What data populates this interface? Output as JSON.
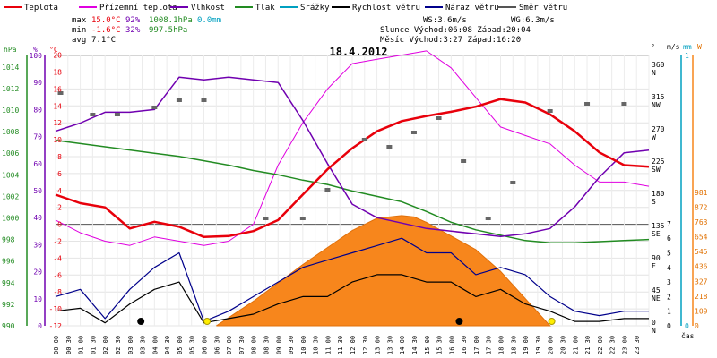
{
  "chart_data": {
    "type": "line",
    "title": "18.4.2012",
    "legend": [
      {
        "label": "Teplota",
        "color": "#e8000b"
      },
      {
        "label": "Přízemní teplota",
        "color": "#e000e0"
      },
      {
        "label": "Vlhkost",
        "color": "#7000b0"
      },
      {
        "label": "Tlak",
        "color": "#228b22"
      },
      {
        "label": "Srážky",
        "color": "#00a0c0"
      },
      {
        "label": "Rychlost větru",
        "color": "#000000"
      },
      {
        "label": "Náraz větru",
        "color": "#00008b"
      },
      {
        "label": "Směr větru",
        "color": "#555555"
      }
    ],
    "stats": {
      "max_label": "max",
      "max_temp": "15.0°C",
      "max_hum": "92%",
      "max_press": "1008.1hPa",
      "precip": "0.0mm",
      "min_label": "min",
      "min_temp": "-1.6°C",
      "min_hum": "32%",
      "min_press": "997.5hPa",
      "avg_label": "avg",
      "avg_temp": "7.1°C",
      "ws": "WS:3.6m/s",
      "wg": "WG:6.3m/s",
      "sun": "Slunce Východ:06:08   Západ:20:04",
      "moon": "Měsíc  Východ:3:27    Západ:16:20"
    },
    "axes": {
      "hpa_label": "hPa",
      "pct_label": "%",
      "c_label": "°C",
      "hpa_ticks": [
        "1014",
        "1012",
        "1010",
        "1008",
        "1006",
        "1004",
        "1002",
        "1000",
        "998",
        "996",
        "994",
        "992",
        "990"
      ],
      "pct_ticks": [
        "100",
        "90",
        "80",
        "70",
        "60",
        "50",
        "40",
        "30",
        "20",
        "10",
        "0"
      ],
      "c_ticks": [
        "20",
        "18",
        "16",
        "14",
        "12",
        "10",
        "8",
        "6",
        "4",
        "2",
        "0",
        "-2",
        "-4",
        "-6",
        "-8",
        "-10",
        "-12"
      ],
      "deg_label": "°",
      "dir_ticks": [
        "360",
        "315",
        "270",
        "225",
        "180",
        "135",
        "90",
        "45",
        "0"
      ],
      "dir_names": [
        "N",
        "NW",
        "W",
        "SW",
        "S",
        "SE",
        "E",
        "NE",
        "N"
      ],
      "ms_label": "m/s",
      "ms_ticks": [
        "7",
        "6",
        "5",
        "4",
        "3",
        "2",
        "1",
        "0"
      ],
      "mm_label": "mm",
      "mm_ticks": [
        "1",
        "0"
      ],
      "w_label": "W",
      "w_ticks": [
        "981",
        "872",
        "763",
        "654",
        "545",
        "436",
        "327",
        "218",
        "109",
        "0"
      ],
      "x_label": "čas",
      "x_ticks": [
        "00:00",
        "00:30",
        "01:00",
        "01:30",
        "02:00",
        "02:30",
        "03:00",
        "03:30",
        "04:00",
        "04:30",
        "05:00",
        "05:30",
        "06:00",
        "06:30",
        "07:00",
        "07:30",
        "08:00",
        "08:30",
        "09:00",
        "09:30",
        "10:00",
        "10:30",
        "11:00",
        "11:30",
        "12:00",
        "12:30",
        "13:00",
        "13:30",
        "14:00",
        "14:30",
        "15:00",
        "15:30",
        "16:00",
        "16:30",
        "17:00",
        "17:30",
        "18:00",
        "18:30",
        "19:00",
        "19:30",
        "20:00",
        "20:30",
        "21:00",
        "21:30",
        "22:00",
        "22:30",
        "23:00",
        "23:30"
      ]
    },
    "series": [
      {
        "name": "Teplota",
        "unit": "°C",
        "hours": [
          0,
          1,
          2,
          3,
          4,
          5,
          6,
          7,
          8,
          9,
          10,
          11,
          12,
          13,
          14,
          15,
          16,
          17,
          18,
          19,
          20,
          21,
          22,
          23,
          24
        ],
        "values": [
          3.5,
          2.5,
          2.0,
          -0.5,
          0.3,
          -0.3,
          -1.5,
          -1.4,
          -0.8,
          0.5,
          3.5,
          6.5,
          9.0,
          11.0,
          12.2,
          12.8,
          13.3,
          13.9,
          14.8,
          14.4,
          13.0,
          11.0,
          8.5,
          7.0,
          6.8
        ]
      },
      {
        "name": "Přízemní teplota",
        "unit": "°C",
        "hours": [
          0,
          1,
          2,
          3,
          4,
          5,
          6,
          7,
          8,
          9,
          10,
          11,
          12,
          13,
          14,
          15,
          16,
          17,
          18,
          19,
          20,
          21,
          22,
          23,
          24
        ],
        "values": [
          0.5,
          -1.0,
          -2.0,
          -2.5,
          -1.5,
          -2.0,
          -2.5,
          -2.0,
          0.0,
          7.0,
          12.0,
          16.0,
          19.0,
          19.5,
          20.0,
          20.5,
          18.5,
          15.0,
          11.5,
          10.5,
          9.5,
          7.0,
          5.0,
          5.0,
          4.5
        ]
      },
      {
        "name": "Vlhkost",
        "unit": "%",
        "hours": [
          0,
          1,
          2,
          3,
          4,
          5,
          6,
          7,
          8,
          9,
          10,
          11,
          12,
          13,
          14,
          15,
          16,
          17,
          18,
          19,
          20,
          21,
          22,
          23,
          24
        ],
        "values": [
          72,
          75,
          79,
          79,
          80,
          92,
          91,
          92,
          91,
          90,
          76,
          60,
          45,
          40,
          38,
          36,
          35,
          34,
          33,
          34,
          36,
          44,
          55,
          64,
          65
        ]
      },
      {
        "name": "Tlak",
        "unit": "hPa",
        "hours": [
          0,
          1,
          2,
          3,
          4,
          5,
          6,
          7,
          8,
          9,
          10,
          11,
          12,
          13,
          14,
          15,
          16,
          17,
          18,
          19,
          20,
          21,
          22,
          23,
          24
        ],
        "values": [
          1007.2,
          1006.9,
          1006.6,
          1006.3,
          1006.0,
          1005.7,
          1005.3,
          1004.9,
          1004.4,
          1004.0,
          1003.5,
          1003.1,
          1002.5,
          1002.0,
          1001.5,
          1000.6,
          999.6,
          998.9,
          998.4,
          997.9,
          997.7,
          997.7,
          997.8,
          997.9,
          998.0
        ]
      },
      {
        "name": "Rychlost větru",
        "unit": "m/s",
        "hours": [
          0,
          1,
          2,
          3,
          4,
          5,
          6,
          7,
          8,
          9,
          10,
          11,
          12,
          13,
          14,
          15,
          16,
          17,
          18,
          19,
          20,
          21,
          22,
          23,
          24
        ],
        "values": [
          1.0,
          1.2,
          0.2,
          1.5,
          2.5,
          3.0,
          0.2,
          0.5,
          0.8,
          1.5,
          2.0,
          2.0,
          3.0,
          3.5,
          3.5,
          3.0,
          3.0,
          2.0,
          2.5,
          1.5,
          1.0,
          0.3,
          0.3,
          0.5,
          0.5
        ]
      },
      {
        "name": "Náraz větru",
        "unit": "m/s",
        "hours": [
          0,
          1,
          2,
          3,
          4,
          5,
          6,
          7,
          8,
          9,
          10,
          11,
          12,
          13,
          14,
          15,
          16,
          17,
          18,
          19,
          20,
          21,
          22,
          23,
          24
        ],
        "values": [
          2.0,
          2.5,
          0.5,
          2.5,
          4.0,
          5.0,
          0.3,
          1.0,
          2.0,
          3.0,
          4.0,
          4.5,
          5.0,
          5.5,
          6.0,
          5.0,
          5.0,
          3.5,
          4.0,
          3.5,
          2.0,
          1.0,
          0.7,
          1.0,
          1.0
        ]
      },
      {
        "name": "Směr větru",
        "unit": "°",
        "hours": [
          0.2,
          1.5,
          2.5,
          4.0,
          5.0,
          6.0,
          8.5,
          10.0,
          11.0,
          12.5,
          13.5,
          14.5,
          15.5,
          16.5,
          17.5,
          18.5,
          20.0,
          21.5,
          23.0
        ],
        "values": [
          325,
          295,
          295,
          305,
          315,
          315,
          150,
          150,
          190,
          260,
          250,
          270,
          290,
          230,
          150,
          200,
          300,
          310,
          310
        ]
      },
      {
        "name": "Solární záření",
        "unit": "W",
        "hours": [
          6.5,
          8,
          10,
          12,
          13,
          14,
          14.5,
          15,
          16,
          17,
          18,
          19,
          20
        ],
        "values": [
          0,
          180,
          450,
          700,
          790,
          810,
          800,
          760,
          660,
          560,
          400,
          200,
          0
        ]
      }
    ],
    "markers": {
      "sunrise_hour": 6.13,
      "sunset_hour": 20.07,
      "moonrise_hour": 3.45,
      "moonset_hour": 16.33
    }
  }
}
